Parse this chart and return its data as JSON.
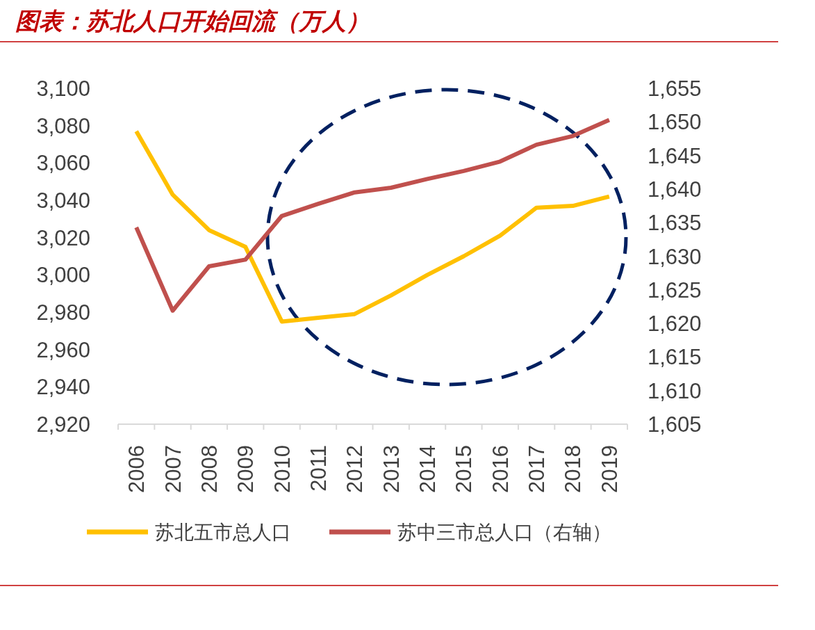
{
  "chart_data": {
    "type": "line",
    "title": "图表：苏北人口开始回流（万人）",
    "categories": [
      "2006",
      "2007",
      "2008",
      "2009",
      "2010",
      "2011",
      "2012",
      "2013",
      "2014",
      "2015",
      "2016",
      "2017",
      "2018",
      "2019"
    ],
    "series": [
      {
        "name": "苏北五市总人口",
        "color": "#ffc000",
        "values": [
          3077,
          3043,
          3024,
          3015,
          2975,
          2977,
          2979,
          2989,
          3000,
          3010,
          3021,
          3036,
          3037,
          3042
        ]
      },
      {
        "name": "苏中三市总人口（右轴）",
        "color": "#c0504d",
        "axis": "y2",
        "values": [
          1634.3,
          1621.9,
          1628.5,
          1629.5,
          1636,
          1637.8,
          1639.5,
          1640.2,
          1641.5,
          1642.7,
          1644.1,
          1646.6,
          1647.9,
          1650.3
        ]
      }
    ],
    "ylim": [
      2920,
      3100
    ],
    "yticks": [
      {
        "value": 2920,
        "label": "2,920"
      },
      {
        "value": 2940,
        "label": "2,940"
      },
      {
        "value": 2960,
        "label": "2,960"
      },
      {
        "value": 2980,
        "label": "2,980"
      },
      {
        "value": 3000,
        "label": "3,000"
      },
      {
        "value": 3020,
        "label": "3,020"
      },
      {
        "value": 3040,
        "label": "3,040"
      },
      {
        "value": 3060,
        "label": "3,060"
      },
      {
        "value": 3080,
        "label": "3,080"
      },
      {
        "value": 3100,
        "label": "3,100"
      }
    ],
    "y2lim": [
      1605,
      1655
    ],
    "y2ticks": [
      {
        "value": 1605,
        "label": "1,605"
      },
      {
        "value": 1610,
        "label": "1,610"
      },
      {
        "value": 1615,
        "label": "1,615"
      },
      {
        "value": 1620,
        "label": "1,620"
      },
      {
        "value": 1625,
        "label": "1,625"
      },
      {
        "value": 1630,
        "label": "1,630"
      },
      {
        "value": 1635,
        "label": "1,635"
      },
      {
        "value": 1640,
        "label": "1,640"
      },
      {
        "value": 1645,
        "label": "1,645"
      },
      {
        "value": 1650,
        "label": "1,650"
      },
      {
        "value": 1655,
        "label": "1,655"
      }
    ],
    "legend": "bottom",
    "grid": false,
    "marker": "none",
    "line_style": "solid"
  }
}
